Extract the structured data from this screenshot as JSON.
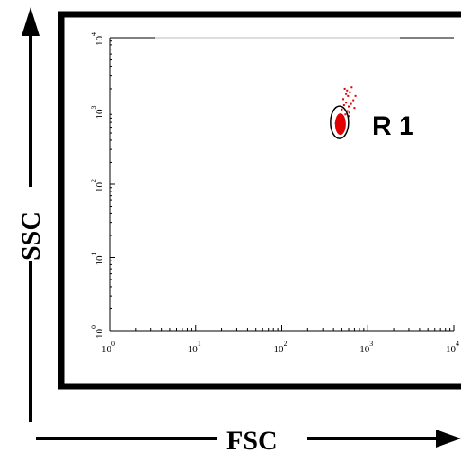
{
  "chart_data": {
    "type": "scatter",
    "title": "",
    "xlabel": "FSC",
    "ylabel": "SSC",
    "x_scale": "log",
    "y_scale": "log",
    "xlim": [
      1,
      10000
    ],
    "ylim": [
      1,
      10000
    ],
    "x_ticks": [
      "10",
      "10",
      "10",
      "10",
      "10"
    ],
    "x_tick_exponents": [
      "0",
      "1",
      "2",
      "3",
      "4"
    ],
    "y_ticks": [
      "10",
      "10",
      "10",
      "10",
      "10"
    ],
    "y_tick_exponents": [
      "0",
      "1",
      "2",
      "3",
      "4"
    ],
    "grid": false,
    "gate": {
      "label": "R 1",
      "shape": "ellipse",
      "center": [
        470,
        700
      ]
    },
    "series": [
      {
        "color": "#e00000",
        "points": [
          [
            440,
            620
          ],
          [
            460,
            680
          ],
          [
            480,
            720
          ],
          [
            450,
            760
          ],
          [
            490,
            650
          ],
          [
            470,
            590
          ],
          [
            430,
            700
          ],
          [
            500,
            740
          ],
          [
            455,
            560
          ],
          [
            475,
            800
          ],
          [
            445,
            640
          ],
          [
            485,
            690
          ],
          [
            465,
            730
          ],
          [
            435,
            610
          ],
          [
            505,
            670
          ],
          [
            460,
            780
          ],
          [
            480,
            600
          ],
          [
            450,
            710
          ],
          [
            495,
            760
          ],
          [
            470,
            650
          ],
          [
            440,
            740
          ],
          [
            510,
            700
          ],
          [
            425,
            680
          ],
          [
            490,
            580
          ],
          [
            470,
            840
          ],
          [
            455,
            630
          ],
          [
            480,
            860
          ],
          [
            500,
            620
          ],
          [
            445,
            800
          ],
          [
            465,
            570
          ],
          [
            520,
            820
          ],
          [
            550,
            900
          ],
          [
            580,
            1000
          ],
          [
            600,
            1150
          ],
          [
            560,
            1300
          ],
          [
            640,
            1250
          ],
          [
            520,
            1450
          ],
          [
            590,
            1600
          ],
          [
            620,
            1800
          ],
          [
            540,
            2000
          ],
          [
            680,
            1400
          ],
          [
            700,
            1100
          ],
          [
            610,
            950
          ],
          [
            560,
            1700
          ],
          [
            650,
            2100
          ],
          [
            530,
            1200
          ],
          [
            720,
            1600
          ],
          [
            600,
            850
          ],
          [
            575,
            1900
          ],
          [
            500,
            1050
          ]
        ]
      }
    ]
  }
}
